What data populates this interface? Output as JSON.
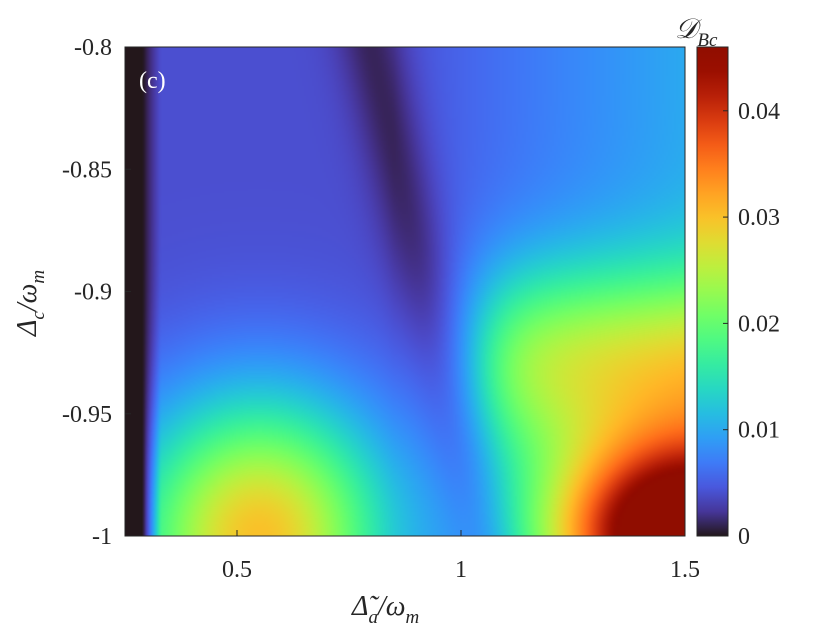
{
  "chart_data": {
    "type": "heatmap",
    "panel_label": "(c)",
    "x_axis": {
      "label_base": "Δ̃",
      "label_sub": "a",
      "label_rest": "/ω",
      "label_sub2": "m",
      "range": [
        0.25,
        1.5
      ],
      "ticks": [
        0.5,
        1,
        1.5
      ],
      "tick_labels": [
        "0.5",
        "1",
        "1.5"
      ]
    },
    "y_axis": {
      "label_base": "Δ",
      "label_sub": "c",
      "label_rest": "/ω",
      "label_sub2": "m",
      "range": [
        -1,
        -0.8
      ],
      "ticks": [
        -1,
        -0.95,
        -0.9,
        -0.85,
        -0.8
      ],
      "tick_labels": [
        "-1",
        "-0.95",
        "-0.9",
        "-0.85",
        "-0.8"
      ]
    },
    "colorbar": {
      "label_base": "𝒟",
      "label_sub": "Bc",
      "range": [
        0,
        0.046
      ],
      "ticks": [
        0,
        0.01,
        0.02,
        0.03,
        0.04
      ],
      "tick_labels": [
        "0",
        "0.01",
        "0.02",
        "0.03",
        "0.04"
      ],
      "colormap": "turbo"
    },
    "features": [
      {
        "name": "dark band",
        "x_range": [
          0.25,
          0.3
        ],
        "value": 0.0
      },
      {
        "name": "lower left lobe",
        "x": 0.55,
        "y": -1.0,
        "value": 0.026
      },
      {
        "name": "lower right peak",
        "x": 1.48,
        "y": -0.995,
        "value": 0.046
      },
      {
        "name": "right shoulder",
        "x": 1.3,
        "y": -0.92,
        "value": 0.022
      }
    ],
    "grid": false
  }
}
